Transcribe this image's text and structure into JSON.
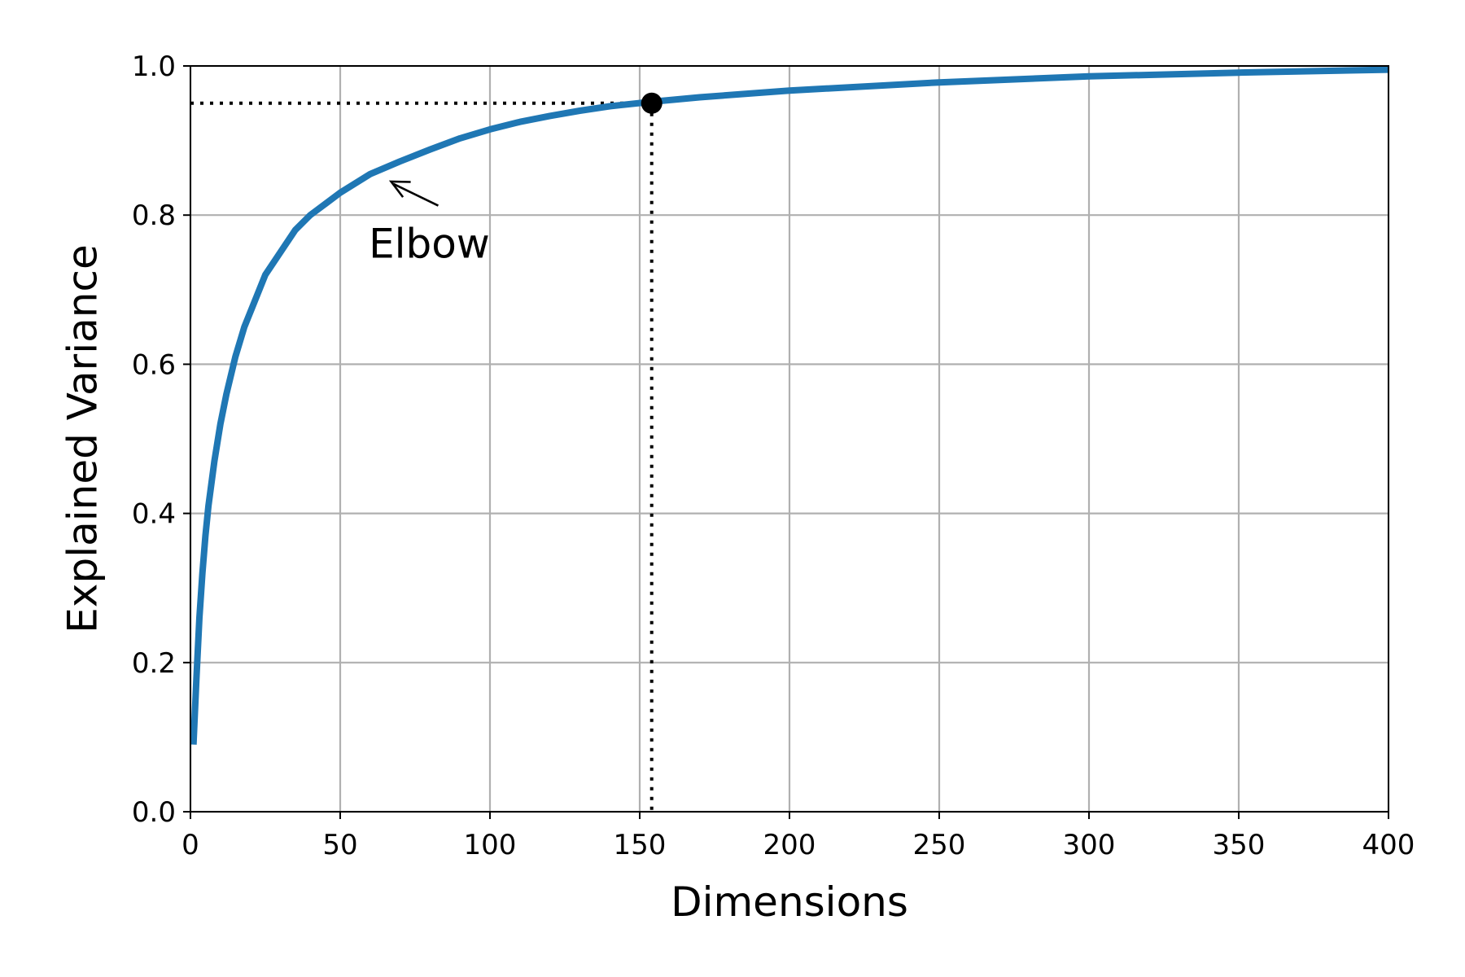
{
  "chart_data": {
    "type": "line",
    "title": "",
    "xlabel": "Dimensions",
    "ylabel": "Explained Variance",
    "xlim": [
      0,
      400
    ],
    "ylim": [
      0,
      1
    ],
    "grid": true,
    "x_ticks": [
      0,
      50,
      100,
      150,
      200,
      250,
      300,
      350,
      400
    ],
    "x_tick_labels": [
      "0",
      "50",
      "100",
      "150",
      "200",
      "250",
      "300",
      "350",
      "400"
    ],
    "y_ticks": [
      0,
      0.2,
      0.4,
      0.6,
      0.8,
      1.0
    ],
    "y_tick_labels": [
      "0.0",
      "0.2",
      "0.4",
      "0.6",
      "0.8",
      "1.0"
    ],
    "series": [
      {
        "color": "#1f77b4",
        "x": [
          1,
          2,
          3,
          4,
          5,
          6,
          8,
          10,
          12,
          15,
          18,
          20,
          25,
          30,
          35,
          40,
          45,
          50,
          60,
          70,
          80,
          90,
          100,
          110,
          120,
          130,
          140,
          154,
          170,
          200,
          250,
          300,
          350,
          400
        ],
        "y": [
          0.09,
          0.18,
          0.26,
          0.32,
          0.37,
          0.41,
          0.47,
          0.52,
          0.56,
          0.61,
          0.65,
          0.67,
          0.72,
          0.75,
          0.78,
          0.8,
          0.815,
          0.83,
          0.855,
          0.872,
          0.888,
          0.903,
          0.915,
          0.925,
          0.933,
          0.94,
          0.946,
          0.952,
          0.958,
          0.967,
          0.978,
          0.986,
          0.991,
          0.995
        ]
      }
    ],
    "highlight_point": {
      "x": 154,
      "y": 0.95,
      "color": "#000000"
    },
    "annotation": {
      "text": "Elbow",
      "point": {
        "x": 67,
        "y": 0.845
      },
      "text_anchor": {
        "x": 83,
        "y": 0.78
      }
    }
  }
}
